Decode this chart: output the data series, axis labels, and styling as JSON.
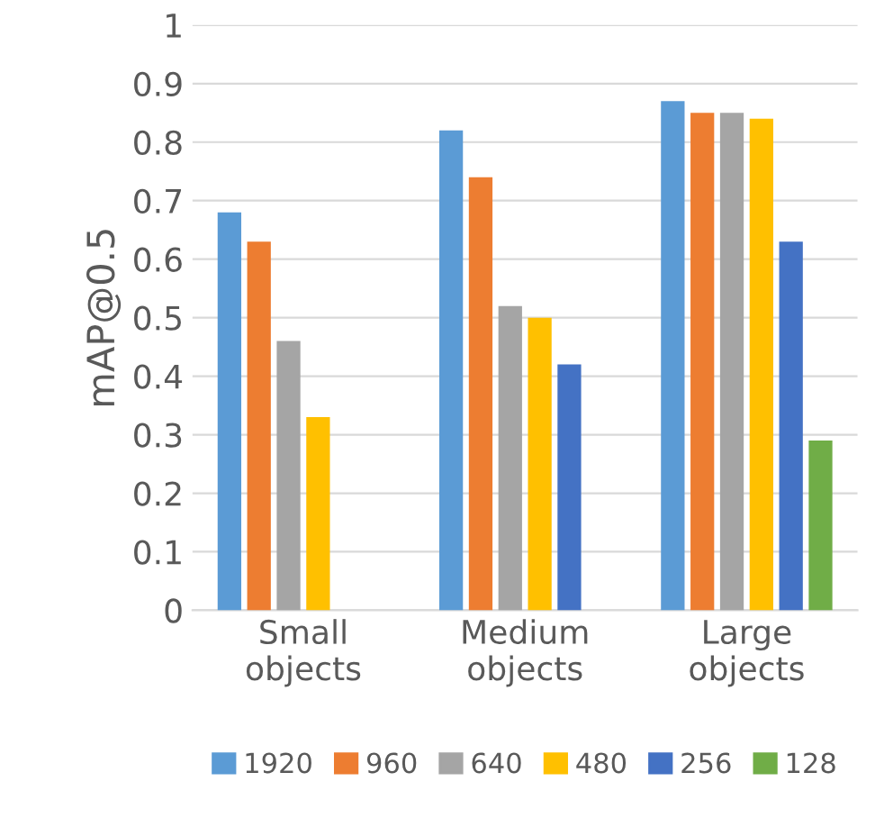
{
  "chart_data": {
    "type": "bar",
    "ylabel": "mAP@0.5",
    "categories": [
      "Small\nobjects",
      "Medium\nobjects",
      "Large\nobjects"
    ],
    "series": [
      {
        "name": "1920",
        "color": "#5b9bd5",
        "values": [
          0.68,
          0.82,
          0.87
        ]
      },
      {
        "name": "960",
        "color": "#ed7d31",
        "values": [
          0.63,
          0.74,
          0.85
        ]
      },
      {
        "name": "640",
        "color": "#a5a5a5",
        "values": [
          0.46,
          0.52,
          0.85
        ]
      },
      {
        "name": "480",
        "color": "#ffc000",
        "values": [
          0.33,
          0.5,
          0.84
        ]
      },
      {
        "name": "256",
        "color": "#4472c4",
        "values": [
          null,
          0.42,
          0.63
        ]
      },
      {
        "name": "128",
        "color": "#70ad47",
        "values": [
          null,
          null,
          0.29
        ]
      }
    ],
    "ylim": [
      0,
      1
    ],
    "yticks": [
      0,
      0.1,
      0.2,
      0.3,
      0.4,
      0.5,
      0.6,
      0.7,
      0.8,
      0.9,
      1
    ],
    "grid": "y",
    "legend": "bottom"
  }
}
